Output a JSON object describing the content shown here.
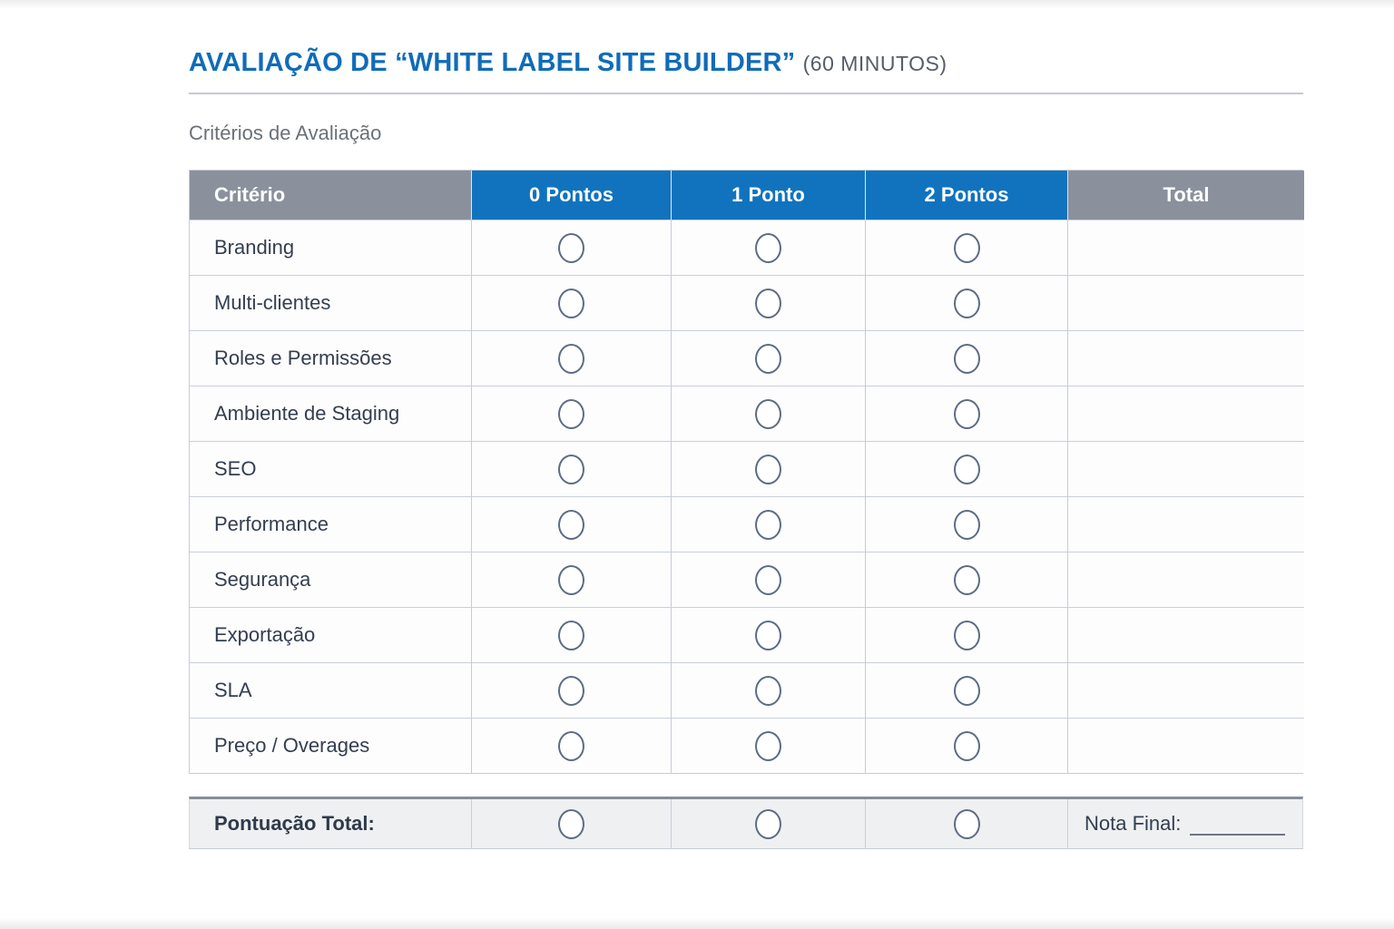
{
  "page": {
    "title": "AVALIAÇÃO DE “WHITE LABEL SITE BUILDER”",
    "duration": "(60 MINUTOS)",
    "subtitle": "Critérios de Avaliação"
  },
  "colors": {
    "accent_blue": "#1173be",
    "header_gray": "#8a919d",
    "title_blue": "#0f6cb9",
    "text_navy": "#333e4f",
    "radio_border": "#5d6c83",
    "summary_bg": "#eef0f2"
  },
  "table": {
    "columns": [
      "Critério",
      "0 Pontos",
      "1 Ponto",
      "2 Pontos",
      "Total"
    ],
    "rows": [
      "Branding",
      "Multi-clientes",
      "Roles e Permissões",
      "Ambiente de Staging",
      "SEO",
      "Performance",
      "Segurança",
      "Exportação",
      "SLA",
      "Preço / Overages"
    ]
  },
  "summary": {
    "label": "Pontuação Total:",
    "nota_label": "Nota Final:"
  }
}
